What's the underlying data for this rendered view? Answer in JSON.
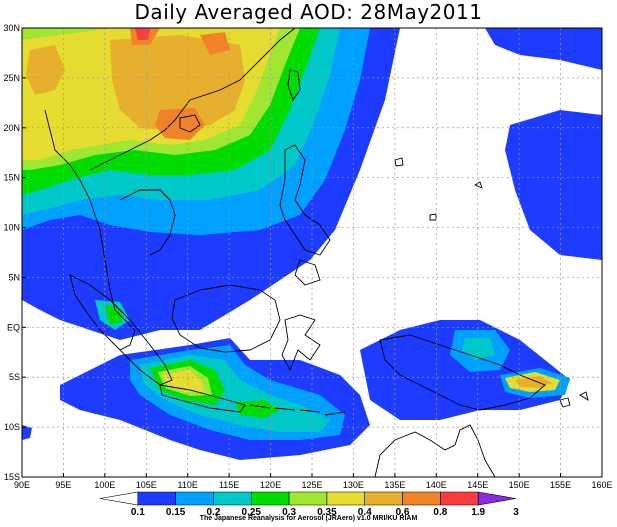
{
  "title": "Daily Averaged AOD: 28May2011",
  "map": {
    "lon_range": [
      90,
      160
    ],
    "lat_range": [
      -15,
      30
    ],
    "lon_ticks": [
      {
        "value": 90,
        "label": "90E"
      },
      {
        "value": 95,
        "label": "95E"
      },
      {
        "value": 100,
        "label": "100E"
      },
      {
        "value": 105,
        "label": "105E"
      },
      {
        "value": 110,
        "label": "110E"
      },
      {
        "value": 115,
        "label": "115E"
      },
      {
        "value": 120,
        "label": "120E"
      },
      {
        "value": 125,
        "label": "125E"
      },
      {
        "value": 130,
        "label": "130E"
      },
      {
        "value": 135,
        "label": "135E"
      },
      {
        "value": 140,
        "label": "140E"
      },
      {
        "value": 145,
        "label": "145E"
      },
      {
        "value": 150,
        "label": "150E"
      },
      {
        "value": 155,
        "label": "155E"
      },
      {
        "value": 160,
        "label": "160E"
      }
    ],
    "lat_ticks": [
      {
        "value": 30,
        "label": "30N"
      },
      {
        "value": 25,
        "label": "25N"
      },
      {
        "value": 20,
        "label": "20N"
      },
      {
        "value": 15,
        "label": "15N"
      },
      {
        "value": 10,
        "label": "10N"
      },
      {
        "value": 5,
        "label": "5N"
      },
      {
        "value": 0,
        "label": "EQ"
      },
      {
        "value": -5,
        "label": "5S"
      },
      {
        "value": -10,
        "label": "10S"
      },
      {
        "value": -15,
        "label": "15S"
      }
    ],
    "grid": "dashed"
  },
  "colorbar": {
    "levels": [
      "0.1",
      "0.15",
      "0.2",
      "0.25",
      "0.3",
      "0.35",
      "0.4",
      "0.6",
      "0.8",
      "1.9",
      "3"
    ],
    "colors": [
      "#ffffff",
      "#1e3cff",
      "#00a0ff",
      "#00c8c8",
      "#00dc00",
      "#a0e632",
      "#e6dc32",
      "#e6af2d",
      "#f08228",
      "#fa3c3c",
      "#8a2be2"
    ]
  },
  "palette": {
    "c1": "#1e3cff",
    "c2": "#00a0ff",
    "c3": "#00c8c8",
    "c4": "#00dc00",
    "c5": "#a0e632",
    "c6": "#e6dc32",
    "c7": "#e6af2d",
    "c8": "#f08228",
    "c9": "#fa3c3c"
  },
  "credit": "The Japanese Reanalysis for Aerosol (JRAero) v1.0 MRI/KU RIAM"
}
